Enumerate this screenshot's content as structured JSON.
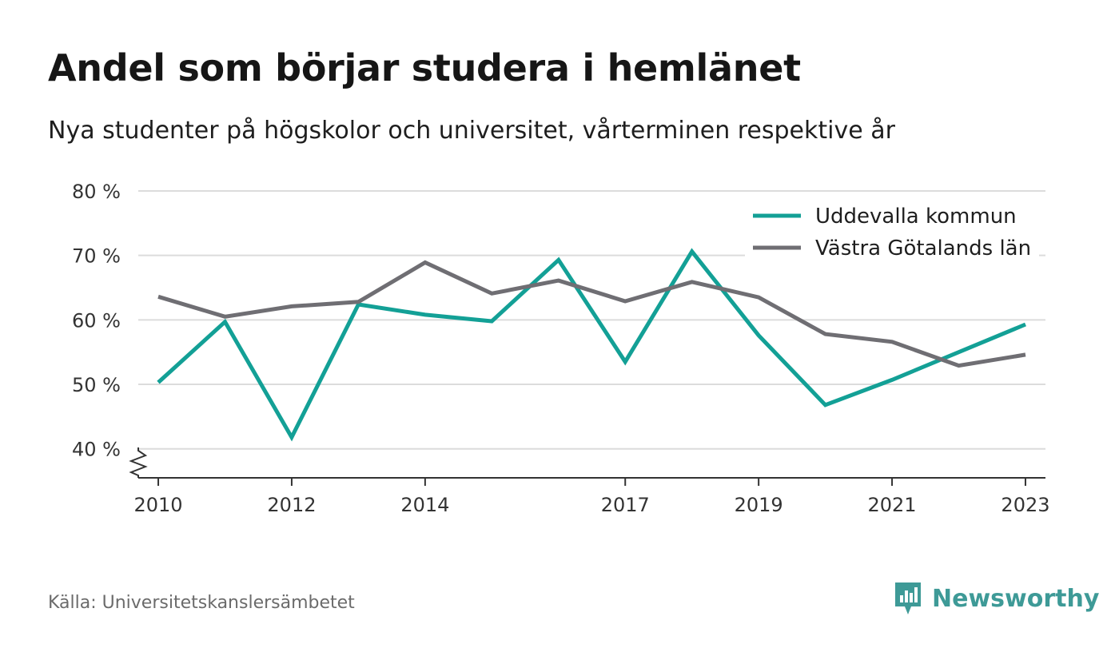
{
  "title": "Andel som börjar studera i hemlänet",
  "subtitle": "Nya studenter på högskolor och universitet, vårterminen respektive år",
  "source": "Källa: Universitetskanslersämbetet",
  "brand": {
    "name": "Newsworthy",
    "icon": "newsworthy-logo-icon",
    "color": "#3e9a97"
  },
  "chart_data": {
    "type": "line",
    "x": [
      2010,
      2011,
      2012,
      2013,
      2014,
      2015,
      2016,
      2017,
      2018,
      2019,
      2020,
      2021,
      2022,
      2023
    ],
    "x_ticks": [
      2010,
      2012,
      2014,
      2017,
      2019,
      2021,
      2023
    ],
    "y_ticks": [
      40,
      50,
      60,
      70,
      80
    ],
    "y_tick_labels": [
      "40 %",
      "50 %",
      "60 %",
      "70 %",
      "80 %"
    ],
    "ylim": [
      35.5,
      80
    ],
    "xlim": [
      2009.7,
      2023.3
    ],
    "axis_break": true,
    "grid": "horizontal",
    "legend_position": "top-right",
    "series": [
      {
        "name": "Uddevalla kommun",
        "color": "#13a096",
        "values": [
          50.3,
          59.7,
          41.8,
          62.4,
          60.8,
          59.8,
          69.3,
          53.5,
          70.6,
          57.6,
          46.8,
          50.7,
          55.0,
          59.3
        ]
      },
      {
        "name": "Västra Götalands län",
        "color": "#6f6e73",
        "values": [
          63.6,
          60.5,
          62.1,
          62.8,
          68.9,
          64.1,
          66.1,
          62.9,
          65.9,
          63.5,
          57.8,
          56.6,
          52.9,
          54.6
        ]
      }
    ]
  }
}
